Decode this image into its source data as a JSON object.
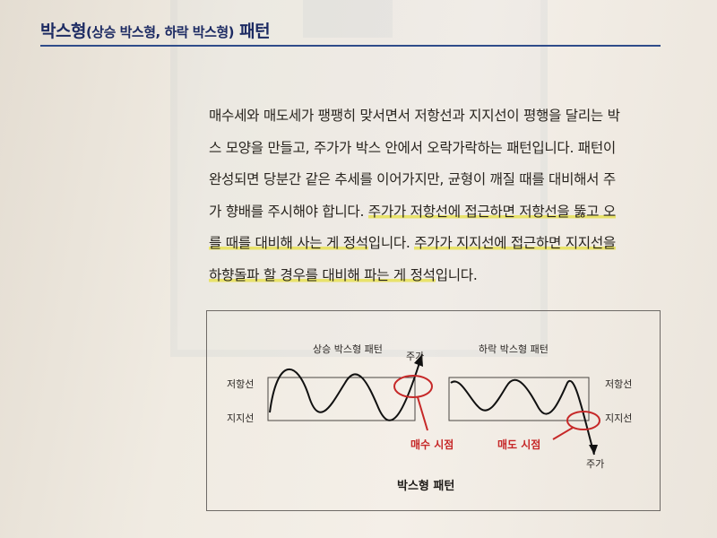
{
  "heading": {
    "main": "박스형",
    "sub": "(상승 박스형, 하락 박스형)",
    "tail": " 패턴"
  },
  "body": {
    "line1": "매수세와 매도세가 팽팽히 맞서면서 저항선과 지지선이 평행을 달리는 박",
    "line2": "스 모양을 만들고, 주가가 박스 안에서 오락가락하는 패턴입니다. 패턴이",
    "line3": "완성되면 당분간 같은 추세를 이어가지만, 균형이 깨질 때를 대비해서 주",
    "line4a": "가 향배를 주시해야 합니다. ",
    "line4b": "주가가 저항선에 접근하면 저항선을 뚫고 오",
    "line5a": "를 때를 대비해 사는 게 정석",
    "line5b": "입니다. ",
    "line5c": "주가가 지지선에 접근하면 지지선을",
    "line6a": "하향돌파 할 경우를 대비해 파는 게 정석",
    "line6b": "입니다."
  },
  "figure": {
    "left_title": "상승 박스형 패턴",
    "right_title": "하락 박스형 패턴",
    "resistance_left": "저항선",
    "support_left": "지지선",
    "resistance_right": "저항선",
    "support_right": "지지선",
    "price_up": "주가",
    "price_down": "주가",
    "buy_point": "매수 시점",
    "sell_point": "매도 시점",
    "caption": "박스형 패턴"
  },
  "colors": {
    "heading": "#1d2b63",
    "rule": "#2f4c8a",
    "highlight": "#e8e26a",
    "marker_red": "#c62828"
  }
}
